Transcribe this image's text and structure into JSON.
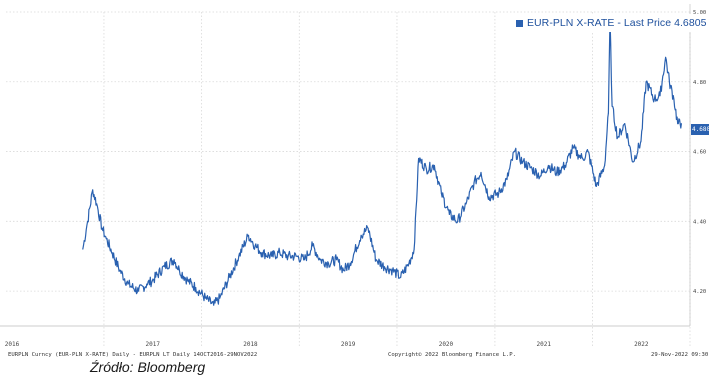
{
  "chart_data": {
    "type": "line",
    "title": "",
    "legend_position": "top-right",
    "grid": true,
    "ylim": [
      4.1,
      5.0
    ],
    "y_ticks": [
      "4.20",
      "4.40",
      "4.60",
      "4.80",
      "5.00"
    ],
    "x_ticks": [
      "2016",
      "2017",
      "2018",
      "2019",
      "2020",
      "2021",
      "2022"
    ],
    "last_value_tag": "4.680",
    "series": [
      {
        "name": "EUR-PLN X-RATE",
        "legend_label": "EUR-PLN X-RATE - Last Price 4.6805",
        "color": "#2a61b0",
        "points": [
          [
            "2016-10-14",
            4.32
          ],
          [
            "2016-11-01",
            4.4
          ],
          [
            "2016-11-20",
            4.49
          ],
          [
            "2016-12-05",
            4.45
          ],
          [
            "2016-12-25",
            4.38
          ],
          [
            "2017-01-10",
            4.35
          ],
          [
            "2017-02-01",
            4.31
          ],
          [
            "2017-03-01",
            4.26
          ],
          [
            "2017-04-01",
            4.22
          ],
          [
            "2017-05-10",
            4.2
          ],
          [
            "2017-06-10",
            4.22
          ],
          [
            "2017-07-01",
            4.23
          ],
          [
            "2017-08-15",
            4.27
          ],
          [
            "2017-09-20",
            4.29
          ],
          [
            "2017-10-10",
            4.26
          ],
          [
            "2017-11-10",
            4.23
          ],
          [
            "2017-12-10",
            4.21
          ],
          [
            "2018-01-15",
            4.18
          ],
          [
            "2018-02-15",
            4.16
          ],
          [
            "2018-03-10",
            4.18
          ],
          [
            "2018-04-15",
            4.24
          ],
          [
            "2018-05-20",
            4.3
          ],
          [
            "2018-06-25",
            4.36
          ],
          [
            "2018-07-20",
            4.33
          ],
          [
            "2018-08-15",
            4.31
          ],
          [
            "2018-09-20",
            4.3
          ],
          [
            "2018-10-20",
            4.31
          ],
          [
            "2018-11-20",
            4.3
          ],
          [
            "2018-12-20",
            4.3
          ],
          [
            "2019-01-20",
            4.29
          ],
          [
            "2019-02-20",
            4.33
          ],
          [
            "2019-03-20",
            4.29
          ],
          [
            "2019-04-20",
            4.28
          ],
          [
            "2019-05-20",
            4.29
          ],
          [
            "2019-06-15",
            4.26
          ],
          [
            "2019-07-10",
            4.28
          ],
          [
            "2019-08-20",
            4.36
          ],
          [
            "2019-09-15",
            4.38
          ],
          [
            "2019-10-15",
            4.29
          ],
          [
            "2019-11-15",
            4.27
          ],
          [
            "2019-12-15",
            4.26
          ],
          [
            "2020-01-15",
            4.24
          ],
          [
            "2020-02-15",
            4.28
          ],
          [
            "2020-03-05",
            4.32
          ],
          [
            "2020-03-22",
            4.58
          ],
          [
            "2020-04-20",
            4.55
          ],
          [
            "2020-05-20",
            4.56
          ],
          [
            "2020-06-15",
            4.48
          ],
          [
            "2020-07-15",
            4.42
          ],
          [
            "2020-08-15",
            4.4
          ],
          [
            "2020-09-15",
            4.45
          ],
          [
            "2020-10-15",
            4.51
          ],
          [
            "2020-11-10",
            4.54
          ],
          [
            "2020-12-10",
            4.47
          ],
          [
            "2021-01-15",
            4.48
          ],
          [
            "2021-02-15",
            4.52
          ],
          [
            "2021-03-15",
            4.6
          ],
          [
            "2021-04-15",
            4.57
          ],
          [
            "2021-05-20",
            4.55
          ],
          [
            "2021-06-20",
            4.53
          ],
          [
            "2021-07-20",
            4.56
          ],
          [
            "2021-08-20",
            4.54
          ],
          [
            "2021-09-20",
            4.56
          ],
          [
            "2021-10-20",
            4.61
          ],
          [
            "2021-11-10",
            4.59
          ],
          [
            "2021-11-25",
            4.58
          ],
          [
            "2021-12-15",
            4.6
          ],
          [
            "2022-01-15",
            4.5
          ],
          [
            "2022-02-15",
            4.56
          ],
          [
            "2022-03-01",
            4.71
          ],
          [
            "2022-03-07",
            4.98
          ],
          [
            "2022-03-15",
            4.73
          ],
          [
            "2022-04-05",
            4.64
          ],
          [
            "2022-05-01",
            4.68
          ],
          [
            "2022-06-01",
            4.57
          ],
          [
            "2022-07-01",
            4.63
          ],
          [
            "2022-07-20",
            4.8
          ],
          [
            "2022-08-20",
            4.75
          ],
          [
            "2022-09-10",
            4.76
          ],
          [
            "2022-10-01",
            4.87
          ],
          [
            "2022-10-15",
            4.8
          ],
          [
            "2022-11-01",
            4.75
          ],
          [
            "2022-11-15",
            4.68
          ],
          [
            "2022-11-29",
            4.6805
          ]
        ]
      }
    ]
  },
  "footer": {
    "left": "EURPLN Curncy (EUR-PLN X-RATE) Daily - EURPLN LT  Daily 14OCT2016-29NOV2022",
    "center": "Copyright© 2022 Bloomberg Finance L.P.",
    "right": "29-Nov-2022 09:30:5"
  },
  "source_caption": "Źródło: Bloomberg",
  "colors": {
    "line": "#2a61b0",
    "grid": "#d9d9d9",
    "axis": "#444444"
  }
}
